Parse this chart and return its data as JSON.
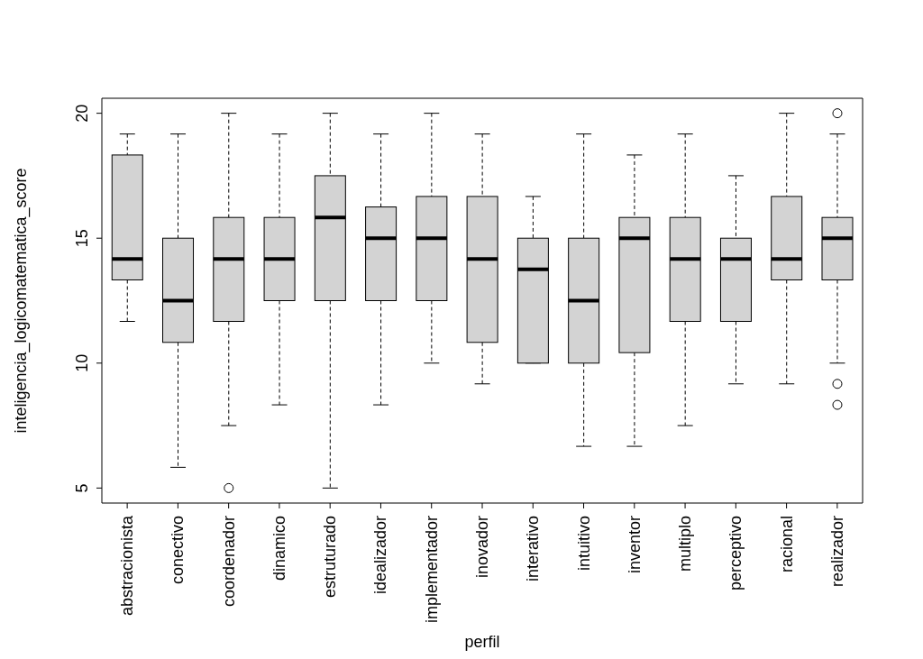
{
  "chart_data": {
    "type": "box",
    "xlabel": "perfil",
    "ylabel": "inteligencia_logicomatematica_score",
    "categories": [
      "abstracionista",
      "conectivo",
      "coordenador",
      "dinamico",
      "estruturado",
      "idealizador",
      "implementador",
      "inovador",
      "interativo",
      "intuitivo",
      "inventor",
      "multiplo",
      "perceptivo",
      "racional",
      "realizador"
    ],
    "ylim": [
      4.4,
      20.6
    ],
    "yticks": [
      5,
      10,
      15,
      20
    ],
    "series": [
      {
        "color": "#d3d3d3",
        "boxes": [
          {
            "low": 11.67,
            "q1": 13.33,
            "median": 14.17,
            "q3": 18.33,
            "high": 19.17
          },
          {
            "low": 5.83,
            "q1": 10.83,
            "median": 12.5,
            "q3": 15,
            "high": 19.17
          },
          {
            "low": 7.5,
            "q1": 11.67,
            "median": 14.17,
            "q3": 15.83,
            "high": 20,
            "outliers": [
              5
            ]
          },
          {
            "low": 8.33,
            "q1": 12.5,
            "median": 14.17,
            "q3": 15.83,
            "high": 19.17
          },
          {
            "low": 5,
            "q1": 12.5,
            "median": 15.83,
            "q3": 17.5,
            "high": 20
          },
          {
            "low": 8.33,
            "q1": 12.5,
            "median": 15,
            "q3": 16.25,
            "high": 19.17
          },
          {
            "low": 10,
            "q1": 12.5,
            "median": 15,
            "q3": 16.67,
            "high": 20
          },
          {
            "low": 9.17,
            "q1": 10.83,
            "median": 14.17,
            "q3": 16.67,
            "high": 19.17
          },
          {
            "low": 10,
            "q1": 10,
            "median": 13.75,
            "q3": 15,
            "high": 16.67
          },
          {
            "low": 6.67,
            "q1": 10,
            "median": 12.5,
            "q3": 15,
            "high": 19.17
          },
          {
            "low": 6.67,
            "q1": 10.42,
            "median": 15,
            "q3": 15.83,
            "high": 18.33
          },
          {
            "low": 7.5,
            "q1": 11.67,
            "median": 14.17,
            "q3": 15.83,
            "high": 19.17
          },
          {
            "low": 9.17,
            "q1": 11.67,
            "median": 14.17,
            "q3": 15,
            "high": 17.5
          },
          {
            "low": 9.17,
            "q1": 13.33,
            "median": 14.17,
            "q3": 16.67,
            "high": 20
          },
          {
            "low": 10,
            "q1": 13.33,
            "median": 15,
            "q3": 15.83,
            "high": 19.17,
            "outliers": [
              20,
              9.17,
              8.33
            ]
          }
        ]
      }
    ]
  }
}
